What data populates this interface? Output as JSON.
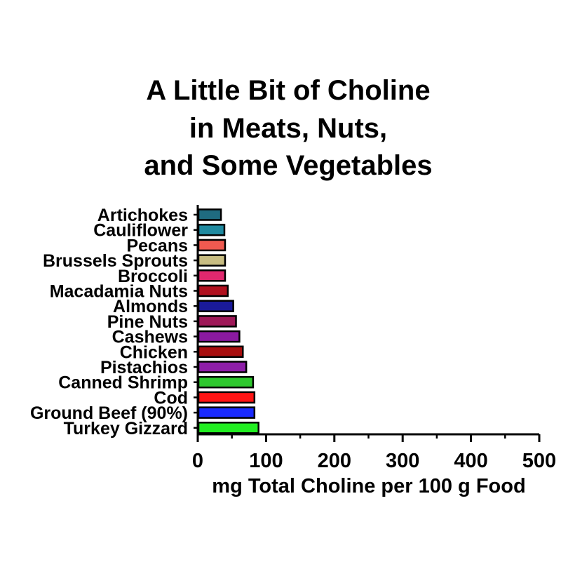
{
  "chart_data": {
    "type": "bar",
    "orientation": "horizontal",
    "title_lines": [
      "A Little Bit of Choline",
      "in Meats, Nuts,",
      "and Some Vegetables"
    ],
    "xlabel": "mg Total Choline per 100 g Food",
    "ylabel": "",
    "xlim": [
      0,
      500
    ],
    "xticks": [
      "0",
      "100",
      "200",
      "300",
      "400",
      "500"
    ],
    "grid": false,
    "legend": "none",
    "categories": [
      "Artichokes",
      "Cauliflower",
      "Pecans",
      "Brussels Sprouts",
      "Broccoli",
      "Macadamia Nuts",
      "Almonds",
      "Pine Nuts",
      "Cashews",
      "Chicken",
      "Pistachios",
      "Canned Shrimp",
      "Cod",
      "Ground Beef (90%)",
      "Turkey Gizzard"
    ],
    "values": [
      34,
      39,
      40,
      40,
      40,
      44,
      52,
      56,
      61,
      66,
      71,
      81,
      83,
      83,
      89
    ],
    "colors": [
      "#1f6b80",
      "#1f8aa0",
      "#f05a50",
      "#c8bd82",
      "#e0286e",
      "#b0101e",
      "#1a1a9a",
      "#9e1858",
      "#8a1aa0",
      "#a80e0e",
      "#8e1ea8",
      "#2ec82e",
      "#ff1414",
      "#1a2aff",
      "#22ee22"
    ]
  }
}
